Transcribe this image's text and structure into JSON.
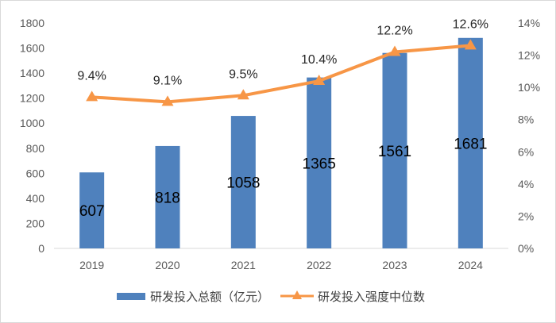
{
  "chart_data": {
    "type": "bar+line",
    "categories": [
      "2019",
      "2020",
      "2021",
      "2022",
      "2023",
      "2024"
    ],
    "series": [
      {
        "name": "研发投入总额（亿元）",
        "type": "bar",
        "axis": "left",
        "color": "#4f81bd",
        "values": [
          607,
          818,
          1058,
          1365,
          1561,
          1681
        ],
        "labels": [
          "607",
          "818",
          "1058",
          "1365",
          "1561",
          "1681"
        ]
      },
      {
        "name": "研发投入强度中位数",
        "type": "line",
        "axis": "right",
        "color": "#f79646",
        "values": [
          9.4,
          9.1,
          9.5,
          10.4,
          12.2,
          12.6
        ],
        "labels": [
          "9.4%",
          "9.1%",
          "9.5%",
          "10.4%",
          "12.2%",
          "12.6%"
        ]
      }
    ],
    "y_left": {
      "min": 0,
      "max": 1800,
      "ticks": [
        "0",
        "200",
        "400",
        "600",
        "800",
        "1000",
        "1200",
        "1400",
        "1600",
        "1800"
      ]
    },
    "y_right": {
      "min": 0,
      "max": 14,
      "ticks": [
        "0%",
        "2%",
        "4%",
        "6%",
        "8%",
        "10%",
        "12%",
        "14%"
      ]
    },
    "legend_position": "bottom",
    "grid": false
  }
}
